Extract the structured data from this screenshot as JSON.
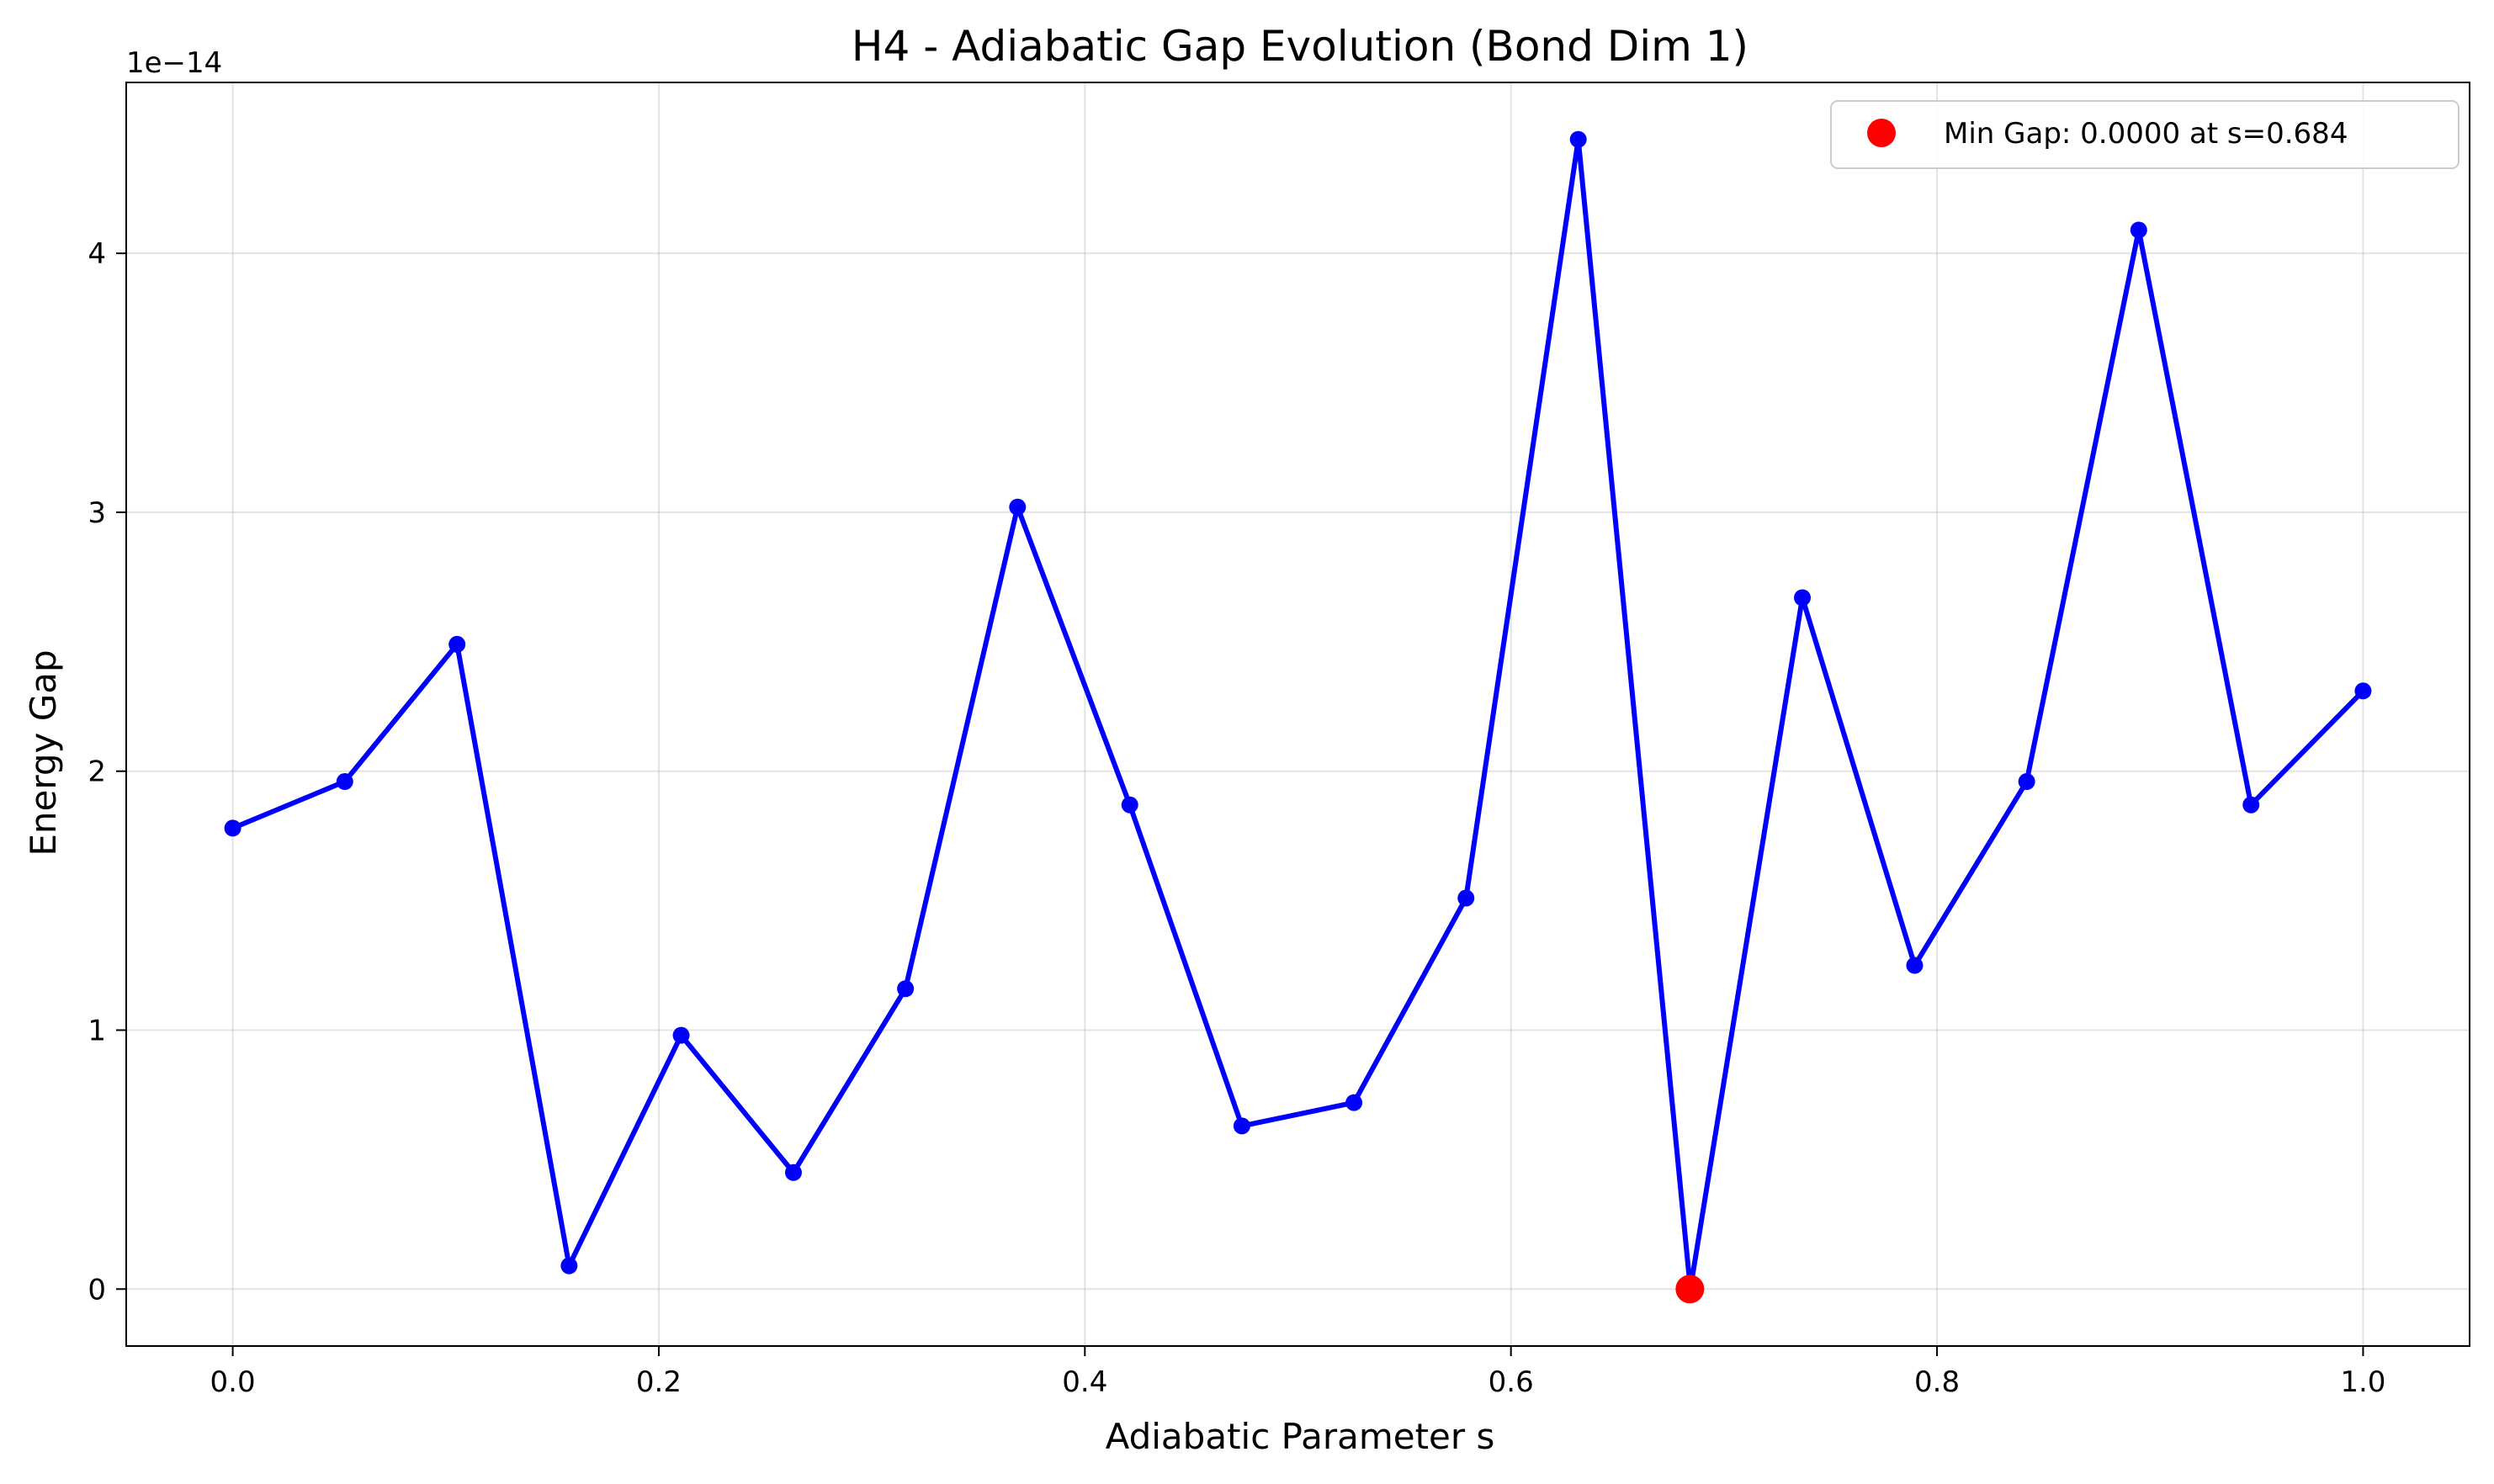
{
  "chart_data": {
    "type": "line",
    "title": "H4 - Adiabatic Gap Evolution (Bond Dim 1)",
    "xlabel": "Adiabatic Parameter s",
    "ylabel": "Energy Gap",
    "y_offset_text": "1e−14",
    "xlim": [
      -0.05,
      1.05
    ],
    "ylim": [
      -0.22,
      4.66
    ],
    "x_ticks": [
      0.0,
      0.2,
      0.4,
      0.6,
      0.8,
      1.0
    ],
    "x_tick_labels": [
      "0.0",
      "0.2",
      "0.4",
      "0.6",
      "0.8",
      "1.0"
    ],
    "y_ticks": [
      0,
      1,
      2,
      3,
      4
    ],
    "y_tick_labels": [
      "0",
      "1",
      "2",
      "3",
      "4"
    ],
    "grid": true,
    "legend_position": "top-right",
    "series": [
      {
        "x": [
          0.0,
          0.0526,
          0.1053,
          0.1579,
          0.2105,
          0.2632,
          0.3158,
          0.3684,
          0.4211,
          0.4737,
          0.5263,
          0.5789,
          0.6316,
          0.6842,
          0.7368,
          0.7895,
          0.8421,
          0.8947,
          0.9474,
          1.0
        ],
        "values": [
          1.78,
          1.96,
          2.49,
          0.09,
          0.98,
          0.45,
          1.16,
          3.02,
          1.87,
          0.63,
          0.72,
          1.51,
          4.44,
          0.0,
          2.67,
          1.25,
          1.96,
          4.09,
          1.87,
          2.31
        ],
        "color": "#0000ff"
      }
    ],
    "highlight": {
      "label": "Min Gap: 0.0000 at s=0.684",
      "x": 0.684,
      "y": 0.0,
      "color": "#ff0000"
    }
  }
}
